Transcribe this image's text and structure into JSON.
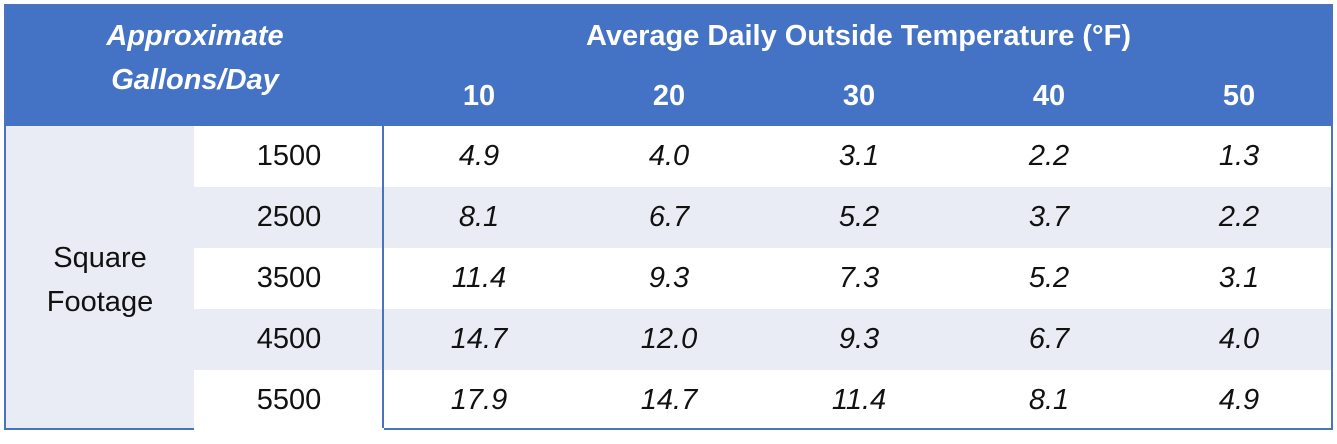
{
  "table": {
    "corner_line1": "Approximate",
    "corner_line2": "Gallons/Day",
    "temp_title": "Average Daily Outside Temperature (°F)",
    "temperatures": [
      "10",
      "20",
      "30",
      "40",
      "50"
    ],
    "row_group_line1": "Square",
    "row_group_line2": "Footage",
    "rows": [
      {
        "sqft": "1500",
        "values": [
          "4.9",
          "4.0",
          "3.1",
          "2.2",
          "1.3"
        ]
      },
      {
        "sqft": "2500",
        "values": [
          "8.1",
          "6.7",
          "5.2",
          "3.7",
          "2.2"
        ]
      },
      {
        "sqft": "3500",
        "values": [
          "11.4",
          "9.3",
          "7.3",
          "5.2",
          "3.1"
        ]
      },
      {
        "sqft": "4500",
        "values": [
          "14.7",
          "12.0",
          "9.3",
          "6.7",
          "4.0"
        ]
      },
      {
        "sqft": "5500",
        "values": [
          "17.9",
          "14.7",
          "11.4",
          "8.1",
          "4.9"
        ]
      }
    ],
    "colors": {
      "header": "#4472c4",
      "row_shade": "#e9ecf4",
      "border": "#4a73be"
    }
  }
}
